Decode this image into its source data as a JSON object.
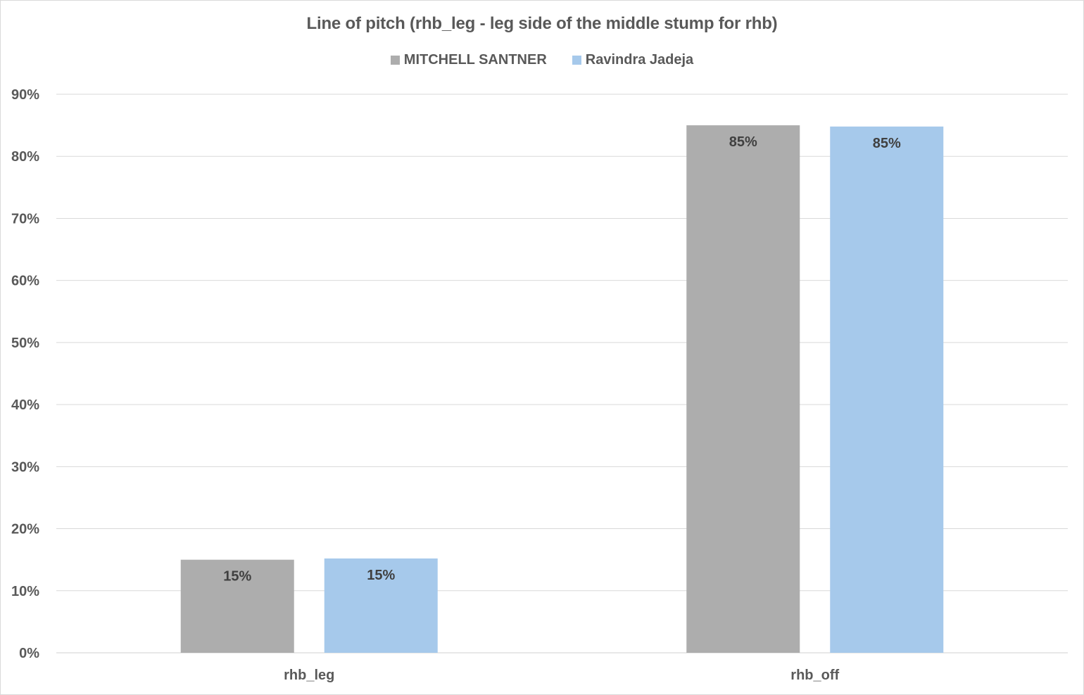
{
  "chart_data": {
    "type": "bar",
    "title": "Line of pitch (rhb_leg - leg side of the middle stump for rhb)",
    "categories": [
      "rhb_leg",
      "rhb_off"
    ],
    "series": [
      {
        "name": "MITCHELL SANTNER",
        "values": [
          15,
          85
        ],
        "color": "#adadad",
        "labels": [
          "15%",
          "85%"
        ]
      },
      {
        "name": "Ravindra Jadeja",
        "values": [
          15.2,
          84.8
        ],
        "color": "#a6c9eb",
        "labels": [
          "15%",
          "85%"
        ]
      }
    ],
    "ylim": [
      0,
      90
    ],
    "yticks": [
      "0%",
      "10%",
      "20%",
      "30%",
      "40%",
      "50%",
      "60%",
      "70%",
      "80%",
      "90%"
    ],
    "grid": true,
    "legend_position": "top",
    "xlabel": "",
    "ylabel": ""
  }
}
